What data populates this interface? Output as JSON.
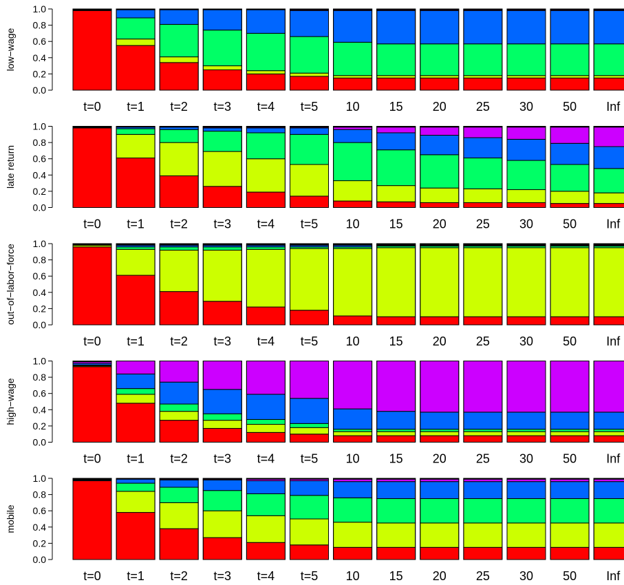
{
  "chart_data": {
    "type": "bar",
    "stacked": true,
    "categories": [
      "t=0",
      "t=1",
      "t=2",
      "t=3",
      "t=4",
      "t=5",
      "10",
      "15",
      "20",
      "25",
      "30",
      "50",
      "Inf"
    ],
    "ylim": [
      0,
      1
    ],
    "yticks": [
      "0.0",
      "0.2",
      "0.4",
      "0.6",
      "0.8",
      "1.0"
    ],
    "grid": false,
    "legend": "none",
    "segment_colors": [
      "#FF0000",
      "#CCFF00",
      "#00FF66",
      "#0066FF",
      "#CC00FF",
      "#000000"
    ],
    "panels": [
      {
        "ylabel": "low−wage",
        "stacks": [
          [
            0.98,
            0.0,
            0.0,
            0.0,
            0.0,
            0.02
          ],
          [
            0.55,
            0.08,
            0.26,
            0.1,
            0.0,
            0.01
          ],
          [
            0.34,
            0.07,
            0.4,
            0.18,
            0.0,
            0.01
          ],
          [
            0.25,
            0.05,
            0.44,
            0.25,
            0.0,
            0.01
          ],
          [
            0.2,
            0.04,
            0.46,
            0.29,
            0.0,
            0.01
          ],
          [
            0.17,
            0.04,
            0.45,
            0.32,
            0.01,
            0.01
          ],
          [
            0.15,
            0.03,
            0.41,
            0.39,
            0.01,
            0.01
          ],
          [
            0.15,
            0.03,
            0.39,
            0.41,
            0.01,
            0.01
          ],
          [
            0.15,
            0.03,
            0.39,
            0.41,
            0.01,
            0.01
          ],
          [
            0.15,
            0.03,
            0.39,
            0.41,
            0.01,
            0.01
          ],
          [
            0.15,
            0.03,
            0.39,
            0.41,
            0.01,
            0.01
          ],
          [
            0.15,
            0.03,
            0.39,
            0.41,
            0.01,
            0.01
          ],
          [
            0.15,
            0.03,
            0.39,
            0.41,
            0.01,
            0.01
          ]
        ]
      },
      {
        "ylabel": "late return",
        "stacks": [
          [
            0.98,
            0.0,
            0.0,
            0.0,
            0.0,
            0.02
          ],
          [
            0.61,
            0.29,
            0.07,
            0.02,
            0.0,
            0.01
          ],
          [
            0.39,
            0.41,
            0.16,
            0.03,
            0.0,
            0.01
          ],
          [
            0.26,
            0.43,
            0.25,
            0.04,
            0.01,
            0.01
          ],
          [
            0.19,
            0.41,
            0.32,
            0.06,
            0.01,
            0.01
          ],
          [
            0.14,
            0.39,
            0.37,
            0.08,
            0.01,
            0.01
          ],
          [
            0.08,
            0.25,
            0.47,
            0.16,
            0.03,
            0.01
          ],
          [
            0.07,
            0.2,
            0.44,
            0.21,
            0.07,
            0.01
          ],
          [
            0.06,
            0.18,
            0.41,
            0.24,
            0.1,
            0.01
          ],
          [
            0.06,
            0.17,
            0.38,
            0.25,
            0.13,
            0.01
          ],
          [
            0.06,
            0.16,
            0.36,
            0.26,
            0.15,
            0.01
          ],
          [
            0.05,
            0.15,
            0.33,
            0.26,
            0.2,
            0.01
          ],
          [
            0.05,
            0.13,
            0.3,
            0.27,
            0.24,
            0.01
          ]
        ]
      },
      {
        "ylabel": "out−of−labor−force",
        "stacks": [
          [
            0.96,
            0.02,
            0.0,
            0.0,
            0.0,
            0.02
          ],
          [
            0.61,
            0.32,
            0.03,
            0.02,
            0.0,
            0.02
          ],
          [
            0.41,
            0.51,
            0.04,
            0.02,
            0.0,
            0.02
          ],
          [
            0.29,
            0.63,
            0.04,
            0.02,
            0.0,
            0.02
          ],
          [
            0.22,
            0.71,
            0.03,
            0.02,
            0.0,
            0.02
          ],
          [
            0.18,
            0.76,
            0.02,
            0.02,
            0.0,
            0.02
          ],
          [
            0.11,
            0.83,
            0.02,
            0.02,
            0.0,
            0.02
          ],
          [
            0.1,
            0.85,
            0.02,
            0.01,
            0.0,
            0.02
          ],
          [
            0.1,
            0.85,
            0.02,
            0.01,
            0.0,
            0.02
          ],
          [
            0.1,
            0.85,
            0.02,
            0.01,
            0.0,
            0.02
          ],
          [
            0.1,
            0.85,
            0.02,
            0.01,
            0.0,
            0.02
          ],
          [
            0.1,
            0.85,
            0.02,
            0.01,
            0.0,
            0.02
          ],
          [
            0.1,
            0.85,
            0.02,
            0.01,
            0.0,
            0.02
          ]
        ]
      },
      {
        "ylabel": "high−wage",
        "stacks": [
          [
            0.93,
            0.01,
            0.01,
            0.02,
            0.02,
            0.01
          ],
          [
            0.48,
            0.11,
            0.07,
            0.18,
            0.16,
            0.0
          ],
          [
            0.27,
            0.11,
            0.09,
            0.27,
            0.26,
            0.0
          ],
          [
            0.17,
            0.1,
            0.08,
            0.3,
            0.35,
            0.0
          ],
          [
            0.12,
            0.1,
            0.06,
            0.31,
            0.41,
            0.0
          ],
          [
            0.1,
            0.08,
            0.05,
            0.31,
            0.46,
            0.0
          ],
          [
            0.08,
            0.05,
            0.03,
            0.25,
            0.59,
            0.0
          ],
          [
            0.08,
            0.05,
            0.03,
            0.22,
            0.62,
            0.0
          ],
          [
            0.08,
            0.05,
            0.03,
            0.21,
            0.63,
            0.0
          ],
          [
            0.08,
            0.05,
            0.03,
            0.21,
            0.63,
            0.0
          ],
          [
            0.08,
            0.05,
            0.03,
            0.21,
            0.63,
            0.0
          ],
          [
            0.08,
            0.05,
            0.03,
            0.21,
            0.63,
            0.0
          ],
          [
            0.08,
            0.05,
            0.03,
            0.21,
            0.63,
            0.0
          ]
        ]
      },
      {
        "ylabel": "mobile",
        "stacks": [
          [
            0.97,
            0.0,
            0.0,
            0.01,
            0.0,
            0.02
          ],
          [
            0.58,
            0.26,
            0.1,
            0.05,
            0.0,
            0.01
          ],
          [
            0.38,
            0.32,
            0.19,
            0.09,
            0.01,
            0.01
          ],
          [
            0.27,
            0.33,
            0.25,
            0.13,
            0.01,
            0.01
          ],
          [
            0.21,
            0.33,
            0.27,
            0.16,
            0.02,
            0.01
          ],
          [
            0.18,
            0.32,
            0.29,
            0.18,
            0.02,
            0.01
          ],
          [
            0.15,
            0.31,
            0.3,
            0.2,
            0.03,
            0.01
          ],
          [
            0.15,
            0.3,
            0.3,
            0.21,
            0.03,
            0.01
          ],
          [
            0.15,
            0.3,
            0.3,
            0.21,
            0.03,
            0.01
          ],
          [
            0.15,
            0.3,
            0.3,
            0.21,
            0.03,
            0.01
          ],
          [
            0.15,
            0.3,
            0.3,
            0.21,
            0.03,
            0.01
          ],
          [
            0.15,
            0.3,
            0.3,
            0.21,
            0.03,
            0.01
          ],
          [
            0.15,
            0.3,
            0.3,
            0.21,
            0.03,
            0.01
          ]
        ]
      }
    ]
  }
}
